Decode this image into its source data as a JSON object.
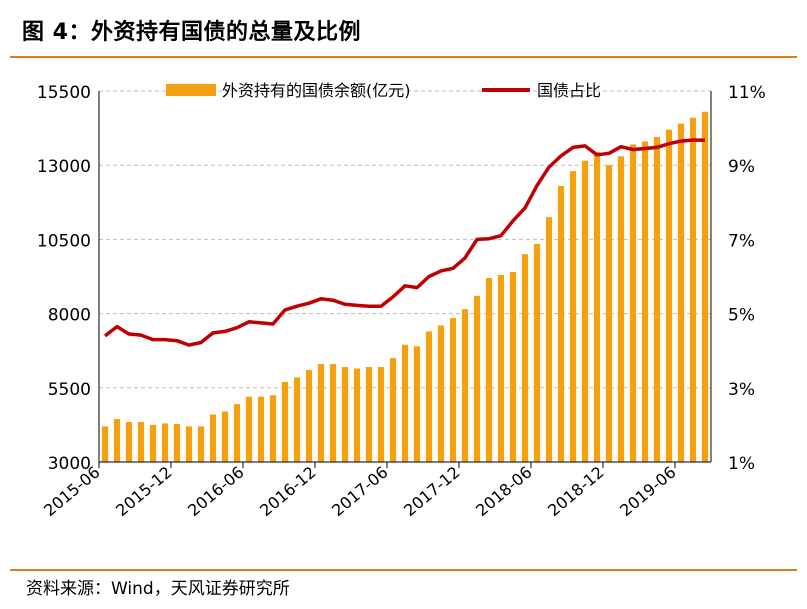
{
  "title": "图 4：外资持有国债的总量及比例",
  "source": "资料来源：Wind，天风证券研究所",
  "chart_data": {
    "type": "bar+line",
    "x": [
      "2015-06",
      "2015-07",
      "2015-08",
      "2015-09",
      "2015-10",
      "2015-11",
      "2015-12",
      "2016-01",
      "2016-02",
      "2016-03",
      "2016-04",
      "2016-05",
      "2016-06",
      "2016-07",
      "2016-08",
      "2016-09",
      "2016-10",
      "2016-11",
      "2016-12",
      "2017-01",
      "2017-02",
      "2017-03",
      "2017-04",
      "2017-05",
      "2017-06",
      "2017-07",
      "2017-08",
      "2017-09",
      "2017-10",
      "2017-11",
      "2017-12",
      "2018-01",
      "2018-02",
      "2018-03",
      "2018-04",
      "2018-05",
      "2018-06",
      "2018-07",
      "2018-08",
      "2018-09",
      "2018-10",
      "2018-11",
      "2018-12",
      "2019-01",
      "2019-02",
      "2019-03",
      "2019-04",
      "2019-05",
      "2019-06",
      "2019-07",
      "2019-08"
    ],
    "x_tick_labels": [
      "2015-06",
      "2015-12",
      "2016-06",
      "2016-12",
      "2017-06",
      "2017-12",
      "2018-06",
      "2018-12",
      "2019-06"
    ],
    "series": [
      {
        "name": "外资持有的国债余额(亿元)",
        "type": "bar",
        "axis": "left",
        "color": "#f5a011",
        "values": [
          4200,
          4450,
          4350,
          4350,
          4250,
          4300,
          4280,
          4200,
          4200,
          4600,
          4700,
          4950,
          5200,
          5200,
          5250,
          5700,
          5850,
          6100,
          6300,
          6300,
          6200,
          6150,
          6200,
          6200,
          6500,
          6950,
          6900,
          7400,
          7600,
          7850,
          8150,
          8600,
          9200,
          9300,
          9400,
          10000,
          10350,
          11250,
          12300,
          12800,
          13150,
          13450,
          13000,
          13300,
          13700,
          13800,
          13950,
          14200,
          14400,
          14600,
          14800
        ]
      },
      {
        "name": "国债占比",
        "type": "line",
        "axis": "right",
        "color": "#c00000",
        "values": [
          4.4,
          4.65,
          4.45,
          4.42,
          4.3,
          4.3,
          4.27,
          4.15,
          4.22,
          4.48,
          4.52,
          4.62,
          4.78,
          4.75,
          4.72,
          5.1,
          5.2,
          5.28,
          5.4,
          5.36,
          5.25,
          5.22,
          5.2,
          5.2,
          5.45,
          5.75,
          5.7,
          6.0,
          6.15,
          6.22,
          6.5,
          7.0,
          7.02,
          7.1,
          7.5,
          7.85,
          8.45,
          8.95,
          9.25,
          9.48,
          9.52,
          9.28,
          9.32,
          9.5,
          9.42,
          9.45,
          9.48,
          9.58,
          9.65,
          9.68,
          9.67
        ]
      }
    ],
    "y_left": {
      "min": 3000,
      "max": 15500,
      "ticks": [
        "3000",
        "5500",
        "8000",
        "10500",
        "13000",
        "15500"
      ]
    },
    "y_right": {
      "min": 1,
      "max": 11,
      "ticks": [
        "1%",
        "3%",
        "5%",
        "7%",
        "9%",
        "11%"
      ]
    },
    "grid": true,
    "legend": "top-center"
  }
}
